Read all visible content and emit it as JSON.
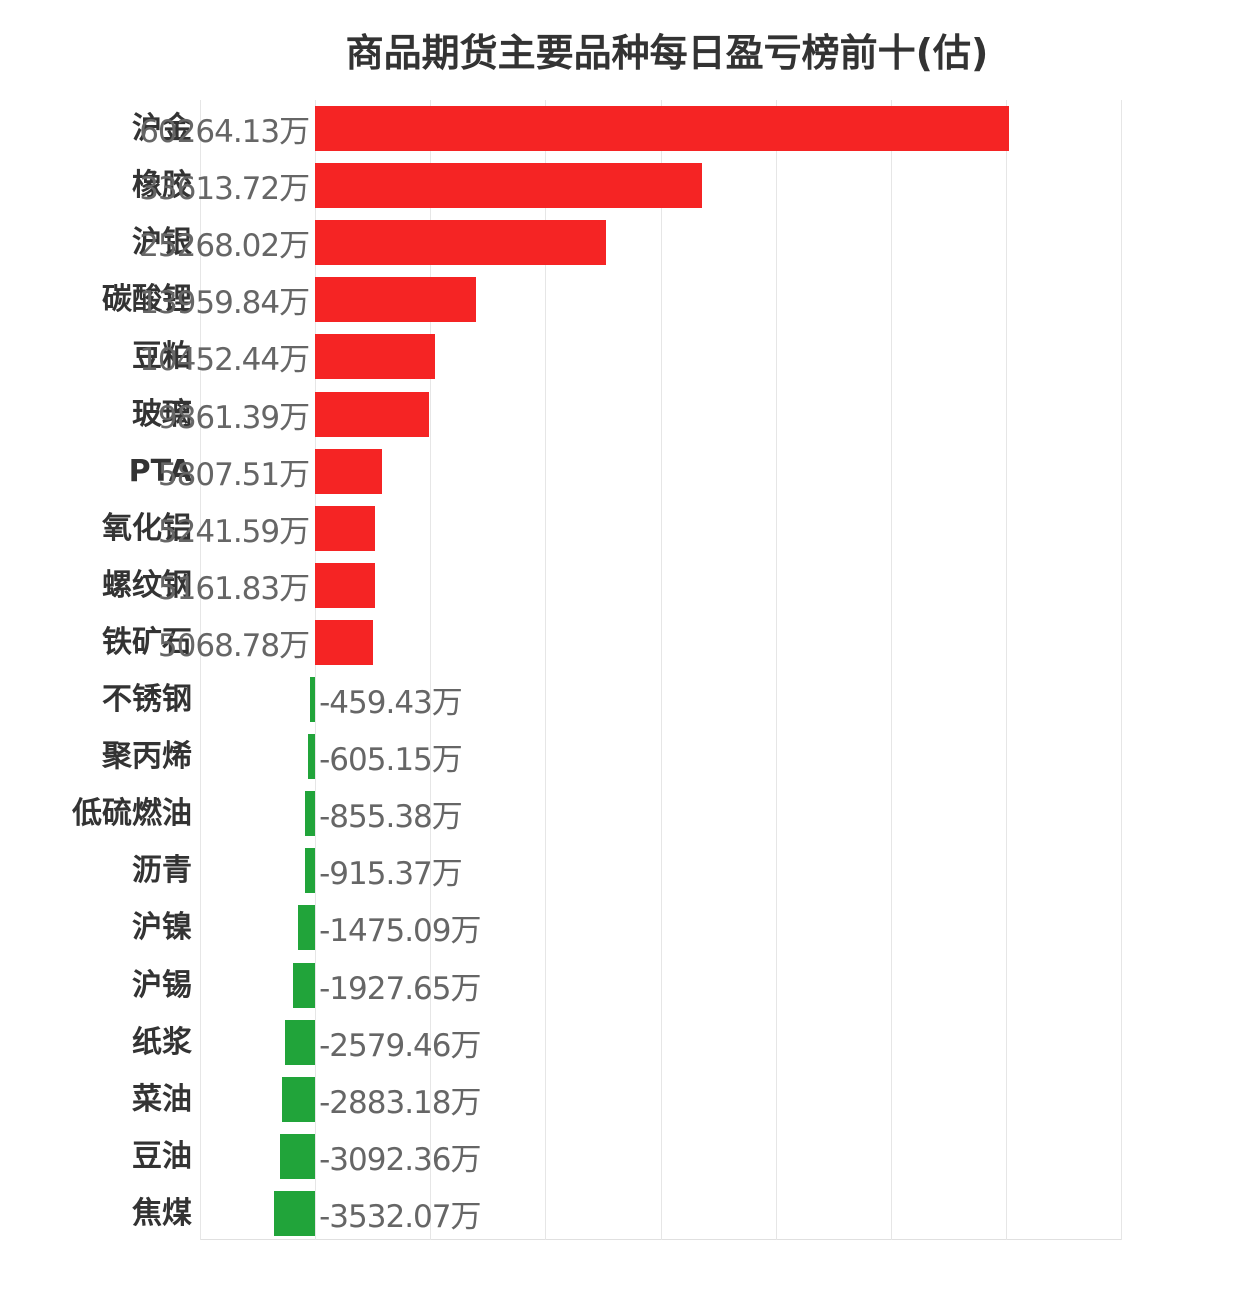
{
  "chart_data": {
    "type": "bar",
    "orientation": "horizontal",
    "title": "商品期货主要品种每日盈亏榜前十(估)",
    "unit": "万",
    "xlabel": "",
    "ylabel": "",
    "xlim": [
      -10000,
      70000
    ],
    "grid": true,
    "gridline_step": 10000,
    "legend": false,
    "colors": {
      "positive": "#f52424",
      "negative": "#21a43a",
      "label": "#666666",
      "category": "#333333"
    },
    "categories": [
      "沪金",
      "橡胶",
      "沪银",
      "碳酸锂",
      "豆粕",
      "玻璃",
      "PTA",
      "氧化铝",
      "螺纹钢",
      "铁矿石",
      "不锈钢",
      "聚丙烯",
      "低硫燃油",
      "沥青",
      "沪镍",
      "沪锡",
      "纸浆",
      "菜油",
      "豆油",
      "焦煤"
    ],
    "values": [
      60264.13,
      33613.72,
      25268.02,
      13959.84,
      10452.44,
      9861.39,
      5807.51,
      5241.59,
      5161.83,
      5068.78,
      -459.43,
      -605.15,
      -855.38,
      -915.37,
      -1475.09,
      -1927.65,
      -2579.46,
      -2883.18,
      -3092.36,
      -3532.07
    ],
    "labels": [
      "60264.13万",
      "33613.72万",
      "25268.02万",
      "13959.84万",
      "10452.44万",
      "9861.39万",
      "5807.51万",
      "5241.59万",
      "5161.83万",
      "5068.78万",
      "-459.43万",
      "-605.15万",
      "-855.38万",
      "-915.37万",
      "-1475.09万",
      "-1927.65万",
      "-2579.46万",
      "-2883.18万",
      "-3092.36万",
      "-3532.07万"
    ]
  }
}
